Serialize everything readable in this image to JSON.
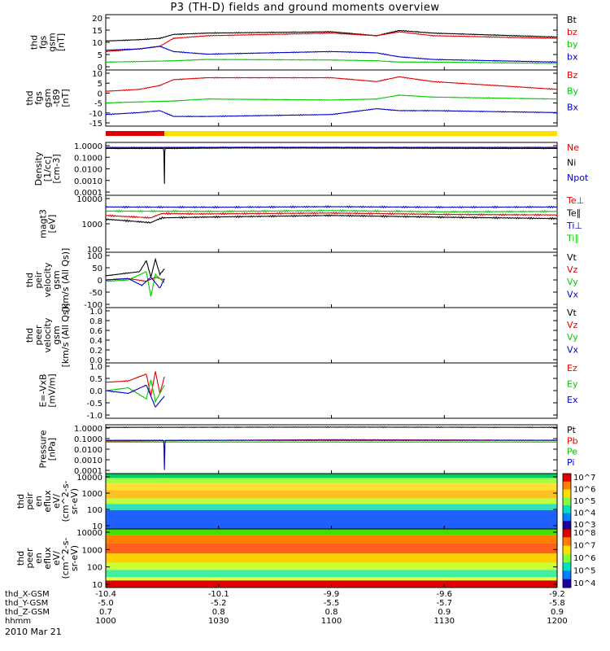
{
  "title": "P3 (TH-D) fields and ground moments overview",
  "date": "2010 Mar 21",
  "colors": {
    "black": "#000000",
    "red": "#e00000",
    "green": "#00cc00",
    "blue": "#0000cc",
    "yellow": "#ffe000"
  },
  "x_axis": {
    "row_labels": [
      "thd_X-GSM",
      "thd_Y-GSM",
      "thd_Z-GSM",
      "hhmm"
    ],
    "ticks": [
      {
        "x": [
          "-10.4",
          "-5.0",
          "0.7",
          "1000"
        ]
      },
      {
        "x": [
          "-10.1",
          "-5.2",
          "0.8",
          "1030"
        ]
      },
      {
        "x": [
          "-9.9",
          "-5.5",
          "0.8",
          "1100"
        ]
      },
      {
        "x": [
          "-9.6",
          "-5.7",
          "0.9",
          "1130"
        ]
      },
      {
        "x": [
          "-9.2",
          "-5.8",
          "0.9",
          "1200"
        ]
      }
    ]
  },
  "chart_data": [
    {
      "type": "line",
      "ylabel": [
        "thd",
        "fgs",
        "gsm",
        "[nT]"
      ],
      "yticks": [
        "20",
        "15",
        "10",
        "5",
        "0"
      ],
      "ylim": [
        0,
        21
      ],
      "legend": [
        "Bt",
        "bz",
        "by",
        "bx"
      ],
      "legend_colors": [
        "black",
        "red",
        "green",
        "blue"
      ],
      "series": [
        {
          "name": "Bt",
          "color": "black",
          "x": [
            1000,
            1015,
            1024,
            1030,
            1045,
            1100,
            1120,
            1130,
            1145,
            1200
          ],
          "values": [
            11,
            11.5,
            12,
            13.5,
            14,
            14.5,
            13,
            15,
            14,
            12.5
          ]
        },
        {
          "name": "bz",
          "color": "red",
          "x": [
            1000,
            1015,
            1024,
            1030,
            1045,
            1100,
            1120,
            1130,
            1145,
            1200
          ],
          "values": [
            7,
            8,
            9,
            12,
            13,
            14,
            13,
            14.5,
            13,
            12
          ]
        },
        {
          "name": "by",
          "color": "green",
          "x": [
            1000,
            1015,
            1030,
            1045,
            1100,
            1120,
            1130,
            1145,
            1200
          ],
          "values": [
            3,
            3.2,
            3.5,
            4,
            3.8,
            3.5,
            3,
            3,
            2.5
          ]
        },
        {
          "name": "bx",
          "color": "blue",
          "x": [
            1000,
            1015,
            1024,
            1030,
            1045,
            1100,
            1120,
            1130,
            1145,
            1200
          ],
          "values": [
            7.5,
            8,
            9,
            7,
            6,
            7,
            6.5,
            5,
            4,
            3
          ]
        }
      ]
    },
    {
      "type": "line",
      "ylabel": [
        "thd",
        "fgs",
        "gsm",
        "-t89",
        "[nT]"
      ],
      "yticks": [
        "10",
        "5",
        "0",
        "-5",
        "-10",
        "-15"
      ],
      "ylim": [
        -18,
        11
      ],
      "legend": [
        "Bz",
        "By",
        "Bx"
      ],
      "legend_colors": [
        "red",
        "green",
        "blue"
      ],
      "series": [
        {
          "name": "Bz",
          "color": "red",
          "x": [
            1000,
            1015,
            1024,
            1030,
            1045,
            1100,
            1120,
            1130,
            1145,
            1200
          ],
          "values": [
            0,
            1,
            3,
            6,
            7,
            7,
            5,
            7.5,
            5,
            1
          ]
        },
        {
          "name": "By",
          "color": "green",
          "x": [
            1000,
            1015,
            1030,
            1045,
            1100,
            1120,
            1130,
            1145,
            1200
          ],
          "values": [
            -6,
            -5.5,
            -5,
            -4,
            -4.5,
            -4,
            -2,
            -3,
            -4
          ]
        },
        {
          "name": "Bx",
          "color": "blue",
          "x": [
            1000,
            1015,
            1024,
            1030,
            1045,
            1100,
            1120,
            1130,
            1145,
            1200
          ],
          "values": [
            -12,
            -11,
            -10,
            -13,
            -13,
            -12,
            -9,
            -10,
            -10,
            -11
          ]
        }
      ]
    },
    {
      "type": "bar",
      "name": "mode-bar",
      "segments": [
        {
          "from": 1000,
          "to": 1026,
          "color": "red"
        },
        {
          "from": 1026,
          "to": 1200,
          "color": "yellow"
        }
      ]
    },
    {
      "type": "line",
      "log": true,
      "ylabel": [
        "Density",
        "[1/cc]",
        "[cm-3]"
      ],
      "yticks": [
        "1.0000",
        "0.1000",
        "0.0100",
        "0.0010",
        "0.0001"
      ],
      "ylim": [
        0.0001,
        1.5
      ],
      "legend": [
        "Ne",
        "Ni",
        "Npot"
      ],
      "legend_colors": [
        "red",
        "black",
        "blue"
      ],
      "series": [
        {
          "name": "Ne",
          "color": "red",
          "x": [
            1000,
            1026,
            1060,
            1100,
            1200
          ],
          "values": [
            0.5,
            0.55,
            0.6,
            0.6,
            0.6
          ]
        },
        {
          "name": "Ni",
          "color": "black",
          "x": [
            1000,
            1025.5,
            1026,
            1026.3,
            1026.5,
            1060,
            1200
          ],
          "values": [
            0.5,
            0.5,
            0.0008,
            0.5,
            0.5,
            0.55,
            0.5
          ]
        },
        {
          "name": "Npot",
          "color": "blue",
          "x": [
            1000,
            1060,
            1200
          ],
          "values": [
            0.6,
            0.62,
            0.6
          ]
        }
      ]
    },
    {
      "type": "line",
      "log": true,
      "ylabel": [
        "magt3",
        "[eV]"
      ],
      "yticks": [
        "10000",
        "1000",
        "100"
      ],
      "ylim": [
        100,
        12000
      ],
      "legend": [
        "Te⊥",
        "Te∥",
        "Ti⊥",
        "Ti∥"
      ],
      "legend_colors": [
        "red",
        "black",
        "blue",
        "green"
      ],
      "series": [
        {
          "name": "Ti⊥",
          "color": "blue",
          "x": [
            1000,
            1050,
            1100,
            1150,
            1200
          ],
          "values": [
            4500,
            4400,
            4600,
            4400,
            4500
          ]
        },
        {
          "name": "Ti∥",
          "color": "green",
          "x": [
            1000,
            1050,
            1100,
            1150,
            1200
          ],
          "values": [
            3200,
            3100,
            3300,
            3000,
            3100
          ]
        },
        {
          "name": "Te⊥",
          "color": "red",
          "x": [
            1000,
            1020,
            1025,
            1040,
            1100,
            1150,
            1200
          ],
          "values": [
            2200,
            1800,
            2600,
            2500,
            2700,
            2400,
            2300
          ]
        },
        {
          "name": "Te∥",
          "color": "black",
          "x": [
            1000,
            1020,
            1025,
            1040,
            1100,
            1150,
            1200
          ],
          "values": [
            1600,
            1200,
            1800,
            1900,
            2200,
            1900,
            1700
          ]
        }
      ]
    },
    {
      "type": "line",
      "ylabel": [
        "thd",
        "peir",
        "velocity",
        "gsm",
        "[km/s (All Qs)]"
      ],
      "yticks": [
        "100",
        "50",
        "0",
        "-50",
        "-100"
      ],
      "ylim": [
        -100,
        100
      ],
      "legend": [
        "Vt",
        "Vz",
        "Vy",
        "Vx"
      ],
      "legend_colors": [
        "black",
        "red",
        "green",
        "blue"
      ],
      "series": [
        {
          "name": "Vt",
          "color": "black",
          "x": [
            1000,
            1005,
            1010,
            1015,
            1018,
            1020,
            1022,
            1024,
            1026
          ],
          "values": [
            15,
            20,
            25,
            30,
            70,
            10,
            75,
            20,
            40
          ]
        },
        {
          "name": "Vz",
          "color": "red",
          "x": [
            1000,
            1010,
            1018,
            1022,
            1026
          ],
          "values": [
            0,
            5,
            -5,
            10,
            0
          ]
        },
        {
          "name": "Vy",
          "color": "green",
          "x": [
            1000,
            1010,
            1018,
            1020,
            1022,
            1026
          ],
          "values": [
            -5,
            0,
            30,
            -60,
            20,
            -10
          ]
        },
        {
          "name": "Vx",
          "color": "blue",
          "x": [
            1000,
            1010,
            1016,
            1020,
            1024,
            1026
          ],
          "values": [
            0,
            5,
            -20,
            10,
            -30,
            5
          ]
        }
      ]
    },
    {
      "type": "line",
      "ylabel": [
        "thd",
        "peer",
        "velocity",
        "gsm",
        "[km/s (All Qs)]"
      ],
      "yticks": [
        "1.0",
        "0.8",
        "0.6",
        "0.4",
        "0.2",
        "0.0"
      ],
      "ylim": [
        0,
        1
      ],
      "legend": [
        "Vt",
        "Vz",
        "Vy",
        "Vx"
      ],
      "legend_colors": [
        "black",
        "red",
        "green",
        "blue"
      ],
      "series": []
    },
    {
      "type": "line",
      "ylabel": [
        "E=-VxB",
        "[mV/m]"
      ],
      "yticks": [
        "1.0",
        "0.5",
        "0.0",
        "-0.5",
        "-1.0"
      ],
      "ylim": [
        -1,
        1
      ],
      "legend": [
        "Ez",
        "Ey",
        "Ex"
      ],
      "legend_colors": [
        "red",
        "green",
        "blue"
      ],
      "series": [
        {
          "name": "Ez",
          "color": "red",
          "x": [
            1000,
            1010,
            1018,
            1020,
            1022,
            1024,
            1026
          ],
          "values": [
            0.3,
            0.35,
            0.6,
            -0.2,
            0.7,
            -0.1,
            0.5
          ]
        },
        {
          "name": "Ey",
          "color": "green",
          "x": [
            1000,
            1010,
            1018,
            1020,
            1022,
            1026
          ],
          "values": [
            0,
            0.1,
            -0.3,
            0.4,
            -0.4,
            0.2
          ]
        },
        {
          "name": "Ex",
          "color": "blue",
          "x": [
            1000,
            1010,
            1018,
            1022,
            1026
          ],
          "values": [
            0,
            -0.1,
            0.2,
            -0.6,
            -0.2
          ]
        }
      ]
    },
    {
      "type": "line",
      "log": true,
      "ylabel": [
        "Pressure",
        "[nPa]"
      ],
      "yticks": [
        "1.0000",
        "0.1000",
        "0.0100",
        "0.0010",
        "0.0001"
      ],
      "ylim": [
        0.0001,
        1.5
      ],
      "legend": [
        "Pt",
        "Pb",
        "Pe",
        "Pi"
      ],
      "legend_colors": [
        "black",
        "red",
        "green",
        "blue"
      ],
      "series": [
        {
          "name": "Pt",
          "color": "black",
          "x": [
            1000,
            1100,
            1200
          ],
          "values": [
            0.9,
            0.95,
            0.9
          ]
        },
        {
          "name": "Pb",
          "color": "red",
          "x": [
            1000,
            1100,
            1200
          ],
          "values": [
            0.06,
            0.08,
            0.07
          ]
        },
        {
          "name": "Pe",
          "color": "green",
          "x": [
            1000,
            1100,
            1200
          ],
          "values": [
            0.05,
            0.05,
            0.05
          ]
        },
        {
          "name": "Pi",
          "color": "blue",
          "x": [
            1000,
            1025.5,
            1026,
            1026.5,
            1200
          ],
          "values": [
            0.07,
            0.07,
            0.0002,
            0.07,
            0.07
          ]
        }
      ]
    },
    {
      "type": "heatmap",
      "ylabel": [
        "thd",
        "peir",
        "en",
        "eflux",
        "eV/",
        "(cm^2-s-",
        "sr-eV)"
      ],
      "yticks": [
        "10000",
        "1000",
        "100",
        "10"
      ],
      "colorbar_ticks": [
        "10^7",
        "10^6",
        "10^5",
        "10^4",
        "10^3"
      ],
      "bands": [
        {
          "y": [
            0.0,
            0.08
          ],
          "color": "#00d060"
        },
        {
          "y": [
            0.08,
            0.18
          ],
          "color": "#a0ff40"
        },
        {
          "y": [
            0.18,
            0.3
          ],
          "color": "#ffe030"
        },
        {
          "y": [
            0.3,
            0.45
          ],
          "color": "#ffc020"
        },
        {
          "y": [
            0.45,
            0.55
          ],
          "color": "#c0ff40"
        },
        {
          "y": [
            0.55,
            0.66
          ],
          "color": "#30e0c0"
        },
        {
          "y": [
            0.66,
            1.0
          ],
          "color": "#2060ff"
        }
      ]
    },
    {
      "type": "heatmap",
      "ylabel": [
        "thd",
        "peer",
        "en",
        "eflux",
        "eV/",
        "(cm^2-s-",
        "sr-eV)"
      ],
      "yticks": [
        "10000",
        "1000",
        "100",
        "10"
      ],
      "colorbar_ticks": [
        "10^8",
        "10^7",
        "10^6",
        "10^5",
        "10^4"
      ],
      "bands": [
        {
          "y": [
            0.0,
            0.1
          ],
          "color": "#40e000"
        },
        {
          "y": [
            0.1,
            0.25
          ],
          "color": "#ff8000"
        },
        {
          "y": [
            0.25,
            0.42
          ],
          "color": "#ff6020"
        },
        {
          "y": [
            0.42,
            0.58
          ],
          "color": "#ffd000"
        },
        {
          "y": [
            0.58,
            0.7
          ],
          "color": "#c8ff30"
        },
        {
          "y": [
            0.7,
            0.82
          ],
          "color": "#40f0a0"
        },
        {
          "y": [
            0.82,
            0.88
          ],
          "color": "#e0ff40"
        },
        {
          "y": [
            0.88,
            1.0
          ],
          "color": "#e00000"
        }
      ]
    }
  ]
}
